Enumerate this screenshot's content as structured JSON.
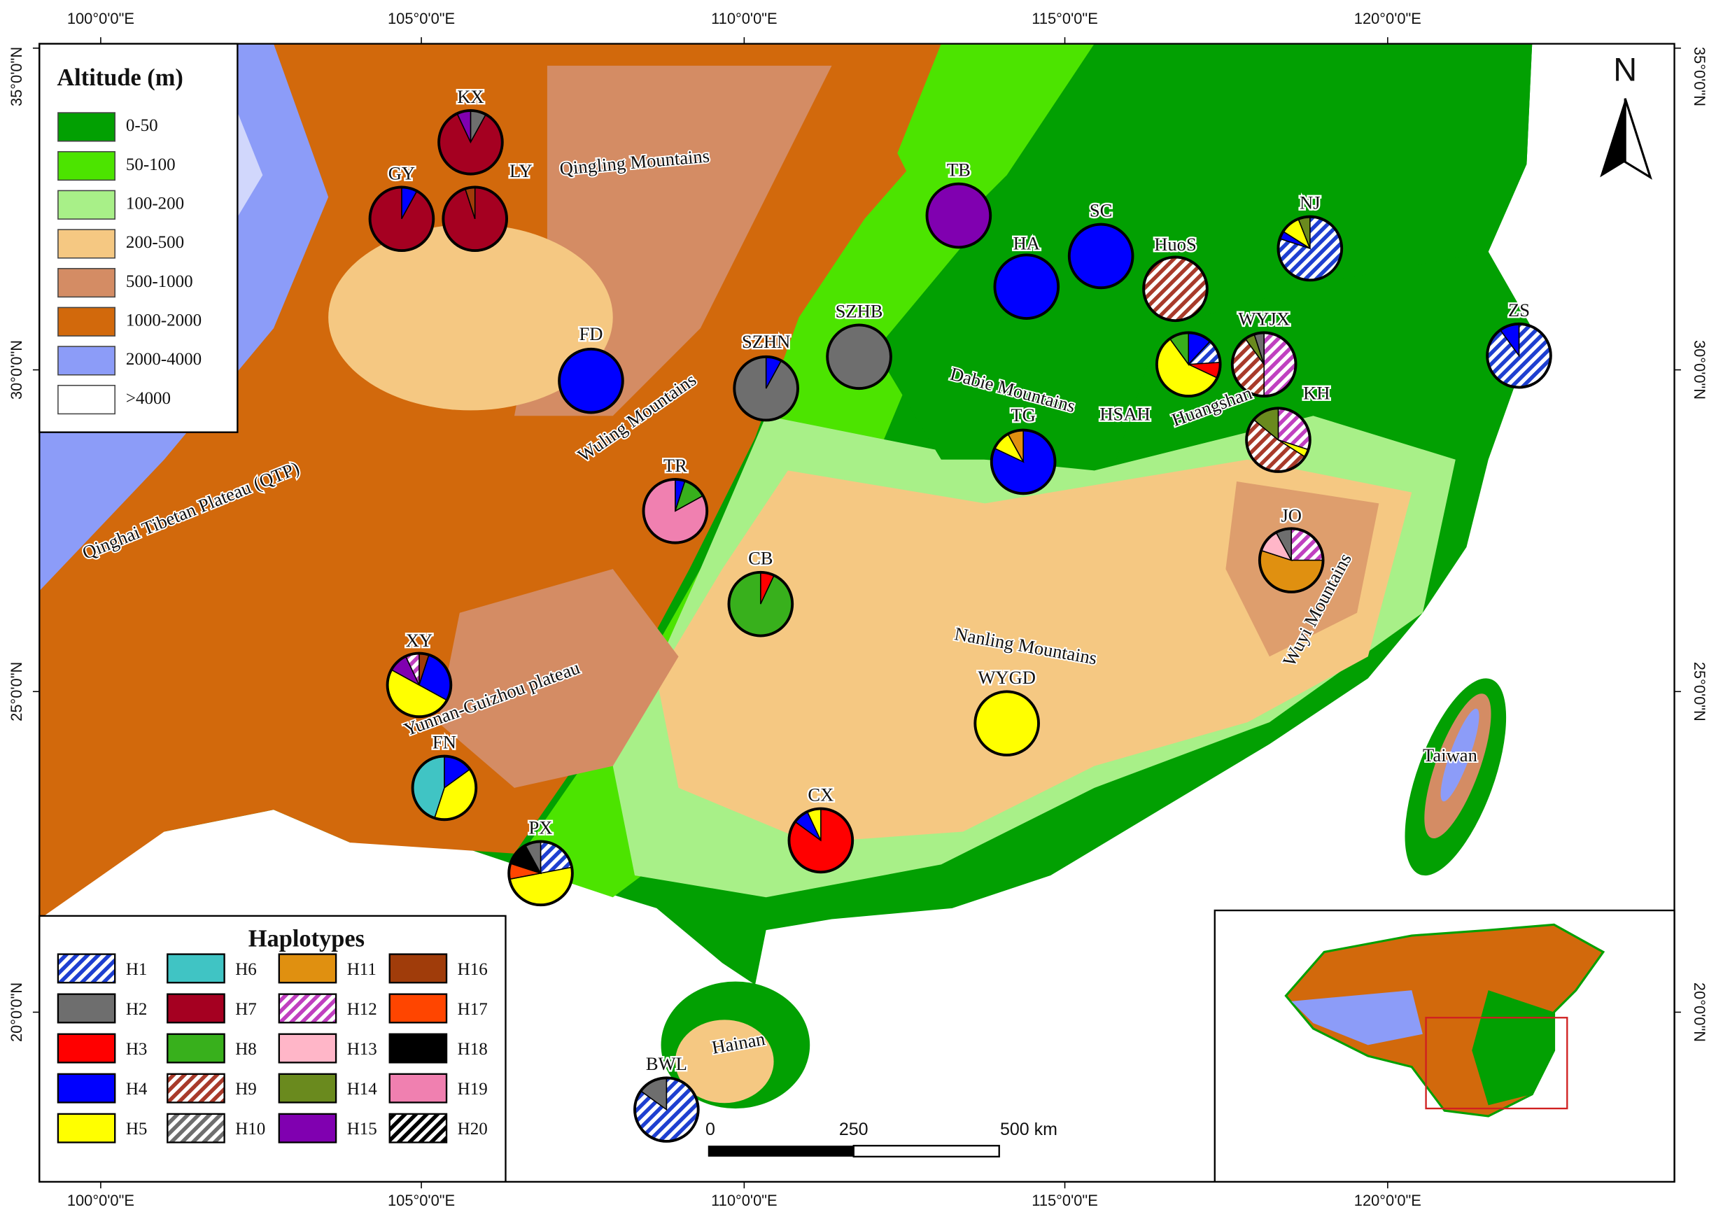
{
  "graticule": {
    "lon": [
      "100°0'0\"E",
      "105°0'0\"E",
      "110°0'0\"E",
      "115°0'0\"E",
      "120°0'0\"E"
    ],
    "lat": [
      "35°0'0\"N",
      "30°0'0\"N",
      "25°0'0\"N",
      "20°0'0\"N"
    ]
  },
  "altitude_legend": {
    "title": "Altitude (m)",
    "items": [
      {
        "label": "0-50",
        "color": "#02a002"
      },
      {
        "label": "50-100",
        "color": "#4ce400"
      },
      {
        "label": "100-200",
        "color": "#a8f088"
      },
      {
        "label": "200-500",
        "color": "#f5c882"
      },
      {
        "label": "500-1000",
        "color": "#d48c64"
      },
      {
        "label": "1000-2000",
        "color": "#d2690c"
      },
      {
        "label": "2000-4000",
        "color": "#8c9cf8"
      },
      {
        "label": ">4000",
        "color": "#ffffff"
      }
    ]
  },
  "haplotype_legend": {
    "title": "Haplotypes",
    "items": [
      {
        "label": "H1",
        "color": "#1e3fd0",
        "hatch": true
      },
      {
        "label": "H2",
        "color": "#6e6e6e",
        "hatch": false
      },
      {
        "label": "H3",
        "color": "#ff0000",
        "hatch": false
      },
      {
        "label": "H4",
        "color": "#0000ff",
        "hatch": false
      },
      {
        "label": "H5",
        "color": "#ffff00",
        "hatch": false
      },
      {
        "label": "H6",
        "color": "#40c4c4",
        "hatch": false
      },
      {
        "label": "H7",
        "color": "#a50021",
        "hatch": false
      },
      {
        "label": "H8",
        "color": "#38b01c",
        "hatch": false
      },
      {
        "label": "H9",
        "color": "#a83a2a",
        "hatch": true
      },
      {
        "label": "H10",
        "color": "#6e6e6e",
        "hatch": true
      },
      {
        "label": "H11",
        "color": "#e09010",
        "hatch": false
      },
      {
        "label": "H12",
        "color": "#c040c0",
        "hatch": true
      },
      {
        "label": "H13",
        "color": "#ffb6c8",
        "hatch": false
      },
      {
        "label": "H14",
        "color": "#6a8a1e",
        "hatch": false
      },
      {
        "label": "H15",
        "color": "#8000b0",
        "hatch": false
      },
      {
        "label": "H16",
        "color": "#a03c0a",
        "hatch": false
      },
      {
        "label": "H17",
        "color": "#ff4500",
        "hatch": false
      },
      {
        "label": "H18",
        "color": "#000000",
        "hatch": false
      },
      {
        "label": "H19",
        "color": "#f080b0",
        "hatch": false
      },
      {
        "label": "H20",
        "color": "#000000",
        "hatch": true
      }
    ]
  },
  "populations": [
    {
      "label": "KX",
      "slices": [
        {
          "haplotype": "H2",
          "value": 8
        },
        {
          "haplotype": "H7",
          "value": 85
        },
        {
          "haplotype": "H15",
          "value": 7
        }
      ]
    },
    {
      "label": "LY",
      "slices": [
        {
          "haplotype": "H7",
          "value": 95
        },
        {
          "haplotype": "H16",
          "value": 5
        }
      ]
    },
    {
      "label": "GY",
      "slices": [
        {
          "haplotype": "H4",
          "value": 8
        },
        {
          "haplotype": "H7",
          "value": 92
        }
      ]
    },
    {
      "label": "TB",
      "slices": [
        {
          "haplotype": "H15",
          "value": 100
        }
      ]
    },
    {
      "label": "SC",
      "slices": [
        {
          "haplotype": "H4",
          "value": 100
        }
      ]
    },
    {
      "label": "HA",
      "slices": [
        {
          "haplotype": "H4",
          "value": 100
        }
      ]
    },
    {
      "label": "HuoS",
      "slices": [
        {
          "haplotype": "H9",
          "value": 100
        }
      ]
    },
    {
      "label": "NJ",
      "slices": [
        {
          "haplotype": "H1",
          "value": 80
        },
        {
          "haplotype": "H4",
          "value": 4
        },
        {
          "haplotype": "H5",
          "value": 10
        },
        {
          "haplotype": "H14",
          "value": 6
        }
      ]
    },
    {
      "label": "FD",
      "slices": [
        {
          "haplotype": "H4",
          "value": 100
        }
      ]
    },
    {
      "label": "SZHN",
      "slices": [
        {
          "haplotype": "H4",
          "value": 8
        },
        {
          "haplotype": "H2",
          "value": 92
        }
      ]
    },
    {
      "label": "SZHB",
      "slices": [
        {
          "haplotype": "H2",
          "value": 100
        }
      ]
    },
    {
      "label": "WYJX",
      "slices": [
        {
          "haplotype": "H12",
          "value": 50
        },
        {
          "haplotype": "H9",
          "value": 40
        },
        {
          "haplotype": "H14",
          "value": 5
        },
        {
          "haplotype": "H2",
          "value": 5
        }
      ]
    },
    {
      "label": "HSAH",
      "slices": [
        {
          "haplotype": "H4",
          "value": 12
        },
        {
          "haplotype": "H1",
          "value": 12
        },
        {
          "haplotype": "H3",
          "value": 8
        },
        {
          "haplotype": "H5",
          "value": 58
        },
        {
          "haplotype": "H8",
          "value": 10
        }
      ]
    },
    {
      "label": "ZS",
      "slices": [
        {
          "haplotype": "H1",
          "value": 90
        },
        {
          "haplotype": "H4",
          "value": 10
        }
      ]
    },
    {
      "label": "TG",
      "slices": [
        {
          "haplotype": "H4",
          "value": 82
        },
        {
          "haplotype": "H5",
          "value": 10
        },
        {
          "haplotype": "H11",
          "value": 8
        }
      ]
    },
    {
      "label": "KH",
      "slices": [
        {
          "haplotype": "H12",
          "value": 30
        },
        {
          "haplotype": "H5",
          "value": 4
        },
        {
          "haplotype": "H9",
          "value": 52
        },
        {
          "haplotype": "H14",
          "value": 14
        }
      ]
    },
    {
      "label": "TR",
      "slices": [
        {
          "haplotype": "H4",
          "value": 5
        },
        {
          "haplotype": "H8",
          "value": 12
        },
        {
          "haplotype": "H19",
          "value": 83
        }
      ]
    },
    {
      "label": "JO",
      "slices": [
        {
          "haplotype": "H12",
          "value": 25
        },
        {
          "haplotype": "H11",
          "value": 55
        },
        {
          "haplotype": "H13",
          "value": 12
        },
        {
          "haplotype": "H2",
          "value": 8
        }
      ]
    },
    {
      "label": "CB",
      "slices": [
        {
          "haplotype": "H3",
          "value": 7
        },
        {
          "haplotype": "H8",
          "value": 93
        }
      ]
    },
    {
      "label": "XY",
      "slices": [
        {
          "haplotype": "H16",
          "value": 5
        },
        {
          "haplotype": "H4",
          "value": 28
        },
        {
          "haplotype": "H5",
          "value": 50
        },
        {
          "haplotype": "H15",
          "value": 10
        },
        {
          "haplotype": "H12",
          "value": 7
        }
      ]
    },
    {
      "label": "WYGD",
      "slices": [
        {
          "haplotype": "H5",
          "value": 100
        }
      ]
    },
    {
      "label": "FN",
      "slices": [
        {
          "haplotype": "H4",
          "value": 15
        },
        {
          "haplotype": "H5",
          "value": 40
        },
        {
          "haplotype": "H6",
          "value": 45
        }
      ]
    },
    {
      "label": "CX",
      "slices": [
        {
          "haplotype": "H3",
          "value": 85
        },
        {
          "haplotype": "H4",
          "value": 8
        },
        {
          "haplotype": "H5",
          "value": 7
        }
      ]
    },
    {
      "label": "PX",
      "slices": [
        {
          "haplotype": "H1",
          "value": 22
        },
        {
          "haplotype": "H5",
          "value": 50
        },
        {
          "haplotype": "H17",
          "value": 8
        },
        {
          "haplotype": "H18",
          "value": 12
        },
        {
          "haplotype": "H2",
          "value": 8
        }
      ]
    },
    {
      "label": "BWL",
      "slices": [
        {
          "haplotype": "H1",
          "value": 85
        },
        {
          "haplotype": "H2",
          "value": 15
        }
      ]
    }
  ],
  "place_names": [
    "Qingling Mountains",
    "Wuling Mountains",
    "Qinghai Tibetan Plateau (QTP)",
    "Dabie Mountains",
    "Huangshan",
    "Nanling Mountains",
    "Wuyi Mountains",
    "Yunnan-Guizhou plateau",
    "Taiwan",
    "Hainan"
  ],
  "scale_bar": {
    "labels": [
      "0",
      "250",
      "500 km"
    ]
  },
  "north": "N"
}
